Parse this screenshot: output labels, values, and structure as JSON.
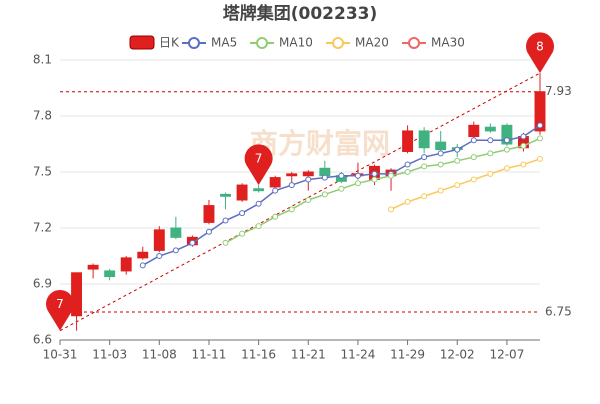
{
  "chart_data": {
    "type": "candlestick",
    "title": "塔牌集团(002233)",
    "watermark": "商方财富网",
    "categories": [
      "10-31",
      null,
      null,
      "11-03",
      null,
      null,
      "11-08",
      null,
      null,
      "11-11",
      null,
      null,
      "11-16",
      null,
      null,
      "11-21",
      null,
      null,
      "11-24",
      null,
      null,
      "11-29",
      null,
      null,
      "12-02",
      null,
      null,
      "12-07",
      null
    ],
    "candles": {
      "name": "日K",
      "up_color": "#e01f1f",
      "down_color": "#3fb27f",
      "open": [
        6.73,
        6.98,
        6.97,
        6.97,
        7.04,
        7.08,
        7.2,
        7.11,
        7.23,
        7.38,
        7.35,
        7.41,
        7.42,
        7.48,
        7.48,
        7.52,
        7.48,
        7.48,
        7.46,
        7.48,
        7.61,
        7.72,
        7.66,
        7.63,
        7.69,
        7.74,
        7.75,
        7.63,
        7.72
      ],
      "close": [
        6.96,
        7.0,
        6.94,
        7.04,
        7.07,
        7.19,
        7.15,
        7.15,
        7.32,
        7.37,
        7.43,
        7.4,
        7.47,
        7.49,
        7.5,
        7.48,
        7.45,
        7.49,
        7.53,
        7.51,
        7.72,
        7.63,
        7.62,
        7.62,
        7.75,
        7.72,
        7.65,
        7.69,
        7.93
      ],
      "high": [
        6.96,
        7.01,
        6.98,
        7.05,
        7.1,
        7.21,
        7.26,
        7.16,
        7.35,
        7.39,
        7.44,
        7.43,
        7.48,
        7.5,
        7.51,
        7.56,
        7.5,
        7.55,
        7.54,
        7.52,
        7.75,
        7.74,
        7.72,
        7.65,
        7.77,
        7.76,
        7.76,
        7.71,
        8.03
      ],
      "low": [
        6.65,
        6.93,
        6.92,
        6.95,
        7.03,
        7.07,
        7.14,
        7.1,
        7.22,
        7.3,
        7.34,
        7.39,
        7.41,
        7.44,
        7.4,
        7.46,
        7.44,
        7.46,
        7.43,
        7.4,
        7.6,
        7.6,
        7.6,
        7.58,
        7.68,
        7.71,
        7.64,
        7.61,
        7.7
      ]
    },
    "series": [
      {
        "name": "MA5",
        "color": "#5b6fc2",
        "values": [
          null,
          null,
          null,
          null,
          7.0,
          7.05,
          7.08,
          7.12,
          7.18,
          7.24,
          7.28,
          7.33,
          7.4,
          7.43,
          7.46,
          7.47,
          7.48,
          7.48,
          7.49,
          7.49,
          7.54,
          7.58,
          7.6,
          7.62,
          7.67,
          7.67,
          7.67,
          7.69,
          7.75
        ]
      },
      {
        "name": "MA10",
        "color": "#91cc75",
        "values": [
          null,
          null,
          null,
          null,
          null,
          null,
          null,
          null,
          null,
          7.12,
          7.17,
          7.21,
          7.26,
          7.3,
          7.35,
          7.38,
          7.41,
          7.44,
          7.46,
          7.48,
          7.5,
          7.53,
          7.54,
          7.56,
          7.58,
          7.6,
          7.62,
          7.64,
          7.68
        ]
      },
      {
        "name": "MA20",
        "color": "#fac858",
        "values": [
          null,
          null,
          null,
          null,
          null,
          null,
          null,
          null,
          null,
          null,
          null,
          null,
          null,
          null,
          null,
          null,
          null,
          null,
          null,
          7.3,
          7.34,
          7.37,
          7.4,
          7.43,
          7.46,
          7.49,
          7.52,
          7.54,
          7.57
        ]
      },
      {
        "name": "MA30",
        "color": "#ee6666",
        "values": [
          null,
          null,
          null,
          null,
          null,
          null,
          null,
          null,
          null,
          null,
          null,
          null,
          null,
          null,
          null,
          null,
          null,
          null,
          null,
          null,
          null,
          null,
          null,
          null,
          null,
          null,
          null,
          null,
          null
        ]
      }
    ],
    "ylim": [
      6.6,
      8.1
    ],
    "yticks": [
      6.6,
      6.9,
      7.2,
      7.5,
      7.8,
      8.1
    ],
    "grid": true,
    "mark_lines": [
      7.93,
      6.75
    ],
    "trend_line": {
      "from": [
        0,
        6.65
      ],
      "to": [
        28,
        8.03
      ]
    },
    "mark_points": [
      {
        "label": "7",
        "index": 0,
        "value": 6.65
      },
      {
        "label": "7",
        "index": 11,
        "value": 7.43
      },
      {
        "label": "8",
        "index": 28,
        "value": 8.03
      }
    ],
    "pin_color": "#e01f1f"
  }
}
